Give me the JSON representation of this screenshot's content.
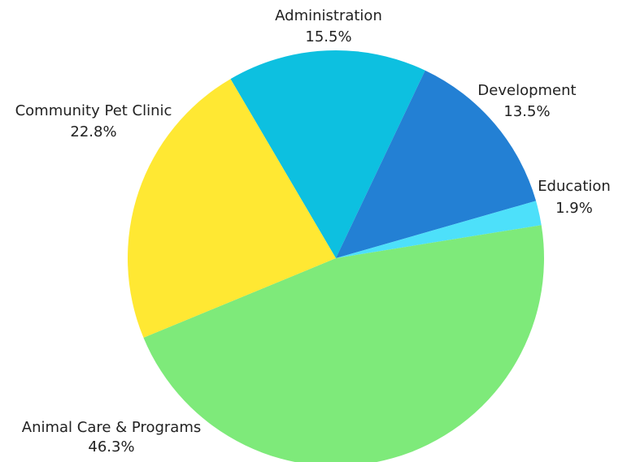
{
  "chart_data": {
    "type": "pie",
    "categories": [
      "Administration",
      "Development",
      "Education",
      "Animal Care & Programs",
      "Community Pet Clinic"
    ],
    "values": [
      15.5,
      13.5,
      1.9,
      46.3,
      22.8
    ],
    "value_labels": [
      "15.5%",
      "13.5%",
      "1.9%",
      "46.3%",
      "22.8%"
    ],
    "colors": [
      "#0dc0e0",
      "#2380d4",
      "#4de0fa",
      "#7eea7a",
      "#ffe833"
    ]
  }
}
